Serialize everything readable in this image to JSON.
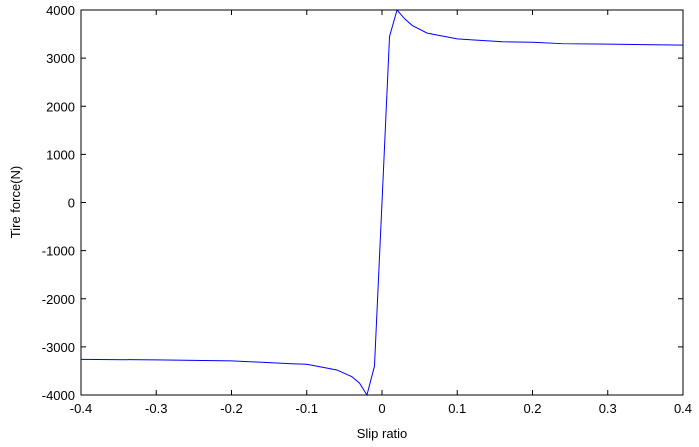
{
  "chart_data": {
    "type": "line",
    "x_label": "Slip ratio",
    "y_label": "Tire force(N)",
    "x": [
      -0.4,
      -0.3,
      -0.25,
      -0.2,
      -0.16,
      -0.12,
      -0.1,
      -0.08,
      -0.06,
      -0.04,
      -0.03,
      -0.02,
      -0.01,
      0,
      0.01,
      0.02,
      0.03,
      0.04,
      0.06,
      0.08,
      0.1,
      0.12,
      0.16,
      0.2,
      0.24,
      0.3,
      0.4
    ],
    "series": [
      {
        "name": "Tire force",
        "color": "#0000ff",
        "values": [
          -3260,
          -3270,
          -3280,
          -3290,
          -3320,
          -3350,
          -3360,
          -3420,
          -3480,
          -3620,
          -3750,
          -4000,
          -3400,
          0,
          3450,
          4000,
          3820,
          3680,
          3520,
          3460,
          3400,
          3380,
          3340,
          3330,
          3300,
          3290,
          3270
        ]
      }
    ],
    "xlim": [
      -0.4,
      0.4
    ],
    "xticks": [
      -0.4,
      -0.3,
      -0.2,
      -0.1,
      0,
      0.1,
      0.2,
      0.3,
      0.4
    ],
    "ylim": [
      -4000,
      4000
    ],
    "yticks": [
      -4000,
      -3000,
      -2000,
      -1000,
      0,
      1000,
      2000,
      3000,
      4000
    ],
    "grid": false
  }
}
